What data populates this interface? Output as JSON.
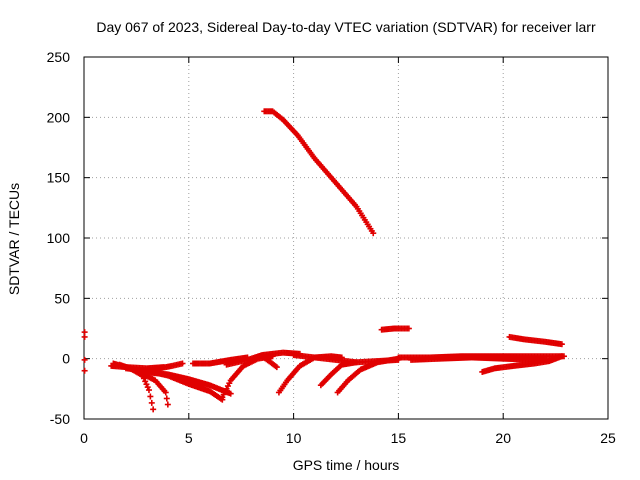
{
  "chart_data": {
    "type": "scatter",
    "title": "Day 067 of 2023, Sidereal Day-to-day VTEC variation (SDTVAR) for receiver larr",
    "xlabel": "GPS time / hours",
    "ylabel": "SDTVAR / TECUs",
    "xlim": [
      0,
      25
    ],
    "ylim": [
      -50,
      250
    ],
    "xticks": [
      "0",
      "5",
      "10",
      "15",
      "20",
      "25"
    ],
    "yticks": [
      "-50",
      "0",
      "50",
      "100",
      "150",
      "200",
      "250"
    ],
    "grid": true,
    "marker": "plus",
    "color": "#e00000",
    "tracks": [
      [
        [
          0.03,
          22
        ],
        [
          0.03,
          18
        ],
        [
          0.03,
          -1
        ],
        [
          0.03,
          -10
        ]
      ],
      [
        [
          8.6,
          205
        ],
        [
          9.0,
          205
        ],
        [
          9.5,
          198
        ],
        [
          10.2,
          185
        ],
        [
          11.0,
          166
        ],
        [
          12.0,
          146
        ],
        [
          13.0,
          126
        ],
        [
          13.8,
          104
        ]
      ],
      [
        [
          14.2,
          24
        ],
        [
          14.8,
          25
        ],
        [
          15.5,
          25
        ]
      ],
      [
        [
          20.3,
          18
        ],
        [
          21.0,
          16
        ],
        [
          22.0,
          14
        ],
        [
          22.8,
          12
        ]
      ],
      [
        [
          1.3,
          -6
        ],
        [
          2.0,
          -7
        ],
        [
          3.0,
          -8
        ],
        [
          3.8,
          -7
        ]
      ],
      [
        [
          1.4,
          -4
        ],
        [
          2.2,
          -8
        ],
        [
          2.8,
          -14
        ],
        [
          3.1,
          -26
        ],
        [
          3.3,
          -42
        ]
      ],
      [
        [
          1.7,
          -5
        ],
        [
          2.5,
          -10
        ],
        [
          3.4,
          -18
        ],
        [
          3.9,
          -28
        ],
        [
          4.0,
          -38
        ]
      ],
      [
        [
          2.0,
          -8
        ],
        [
          3.0,
          -10
        ],
        [
          4.0,
          -14
        ],
        [
          5.0,
          -21
        ],
        [
          6.0,
          -27
        ],
        [
          6.6,
          -34
        ]
      ],
      [
        [
          2.8,
          -11
        ],
        [
          4.0,
          -13
        ],
        [
          5.0,
          -17
        ],
        [
          6.0,
          -22
        ],
        [
          7.0,
          -29
        ]
      ],
      [
        [
          3.0,
          -10
        ],
        [
          3.6,
          -8
        ],
        [
          4.2,
          -6
        ],
        [
          4.7,
          -4
        ]
      ],
      [
        [
          5.2,
          -4
        ],
        [
          6.0,
          -4
        ],
        [
          7.0,
          -1
        ],
        [
          7.8,
          1
        ]
      ],
      [
        [
          6.6,
          -32
        ],
        [
          7.0,
          -18
        ],
        [
          7.6,
          -6
        ],
        [
          8.3,
          0
        ],
        [
          9.0,
          2
        ]
      ],
      [
        [
          6.8,
          -5
        ],
        [
          7.8,
          -1
        ],
        [
          8.5,
          3
        ],
        [
          9.5,
          5
        ],
        [
          10.3,
          4
        ]
      ],
      [
        [
          8.5,
          2
        ],
        [
          8.9,
          -3
        ],
        [
          9.2,
          -7
        ]
      ],
      [
        [
          9.3,
          -28
        ],
        [
          9.7,
          -18
        ],
        [
          10.3,
          -6
        ],
        [
          11.0,
          1
        ],
        [
          11.8,
          2
        ],
        [
          12.3,
          1
        ]
      ],
      [
        [
          10.0,
          3
        ],
        [
          11.0,
          1
        ],
        [
          12.0,
          -1
        ],
        [
          13.0,
          -3
        ],
        [
          14.0,
          -2
        ],
        [
          15.0,
          -1
        ]
      ],
      [
        [
          11.3,
          -22
        ],
        [
          11.8,
          -13
        ],
        [
          12.3,
          -5
        ],
        [
          13.0,
          -3
        ]
      ],
      [
        [
          12.1,
          -28
        ],
        [
          12.6,
          -18
        ],
        [
          13.2,
          -9
        ],
        [
          14.0,
          -3
        ],
        [
          15.0,
          0
        ]
      ],
      [
        [
          15.0,
          1
        ],
        [
          16.5,
          1
        ],
        [
          18.0,
          2
        ],
        [
          19.5,
          2
        ],
        [
          21.0,
          2
        ],
        [
          22.5,
          2
        ],
        [
          22.9,
          2
        ]
      ],
      [
        [
          15.6,
          -1
        ],
        [
          17.0,
          0
        ],
        [
          18.5,
          1
        ],
        [
          20.0,
          0
        ],
        [
          21.5,
          -1
        ],
        [
          22.0,
          -1
        ]
      ],
      [
        [
          19.0,
          -11
        ],
        [
          19.6,
          -8
        ],
        [
          20.5,
          -6
        ],
        [
          21.5,
          -4
        ],
        [
          22.2,
          -2
        ],
        [
          22.8,
          2
        ]
      ]
    ]
  }
}
